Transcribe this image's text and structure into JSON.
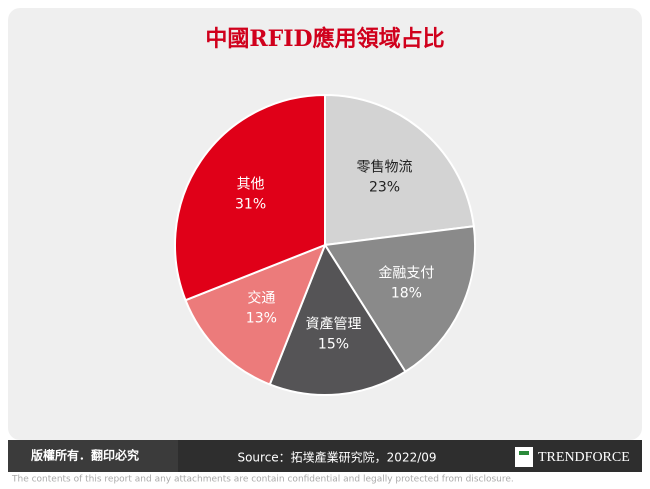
{
  "chart_data": {
    "type": "pie",
    "title": "中國RFID應用領域占比",
    "categories": [
      "零售物流",
      "金融支付",
      "資產管理",
      "交通",
      "其他"
    ],
    "values": [
      23,
      18,
      15,
      13,
      31
    ],
    "value_labels": [
      "23%",
      "18%",
      "15%",
      "13%",
      "31%"
    ],
    "colors": [
      "#d3d3d3",
      "#8a8a8a",
      "#555456",
      "#ec7b7b",
      "#e00018"
    ]
  },
  "footer": {
    "copyright": "版權所有．翻印必究",
    "source": "Source：拓墣產業研究院，2022/09",
    "logo": "TRENDFORCE",
    "disclaimer": "The contents of this report and any attachments are contain confidential and legally protected from disclosure."
  }
}
